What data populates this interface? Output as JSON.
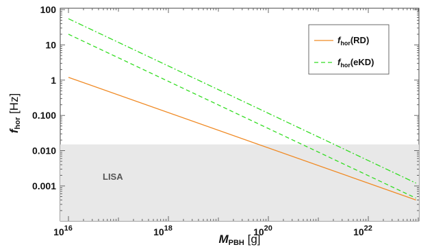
{
  "chart_data": {
    "type": "line",
    "xscale": "log",
    "yscale": "log",
    "xlim": [
      1e+16,
      1e+23
    ],
    "ylim": [
      0.0001,
      100
    ],
    "xlabel": {
      "main": "M",
      "sub": "PBH",
      "unit": " [g]"
    },
    "ylabel": {
      "main": "f",
      "sub": "hor",
      "unit": " [Hz]"
    },
    "x_ticks": [
      {
        "value": 1e+16,
        "base": "10",
        "exp": "16"
      },
      {
        "value": 1e+18,
        "base": "10",
        "exp": "18"
      },
      {
        "value": 1e+20,
        "base": "10",
        "exp": "20"
      },
      {
        "value": 1e+22,
        "base": "10",
        "exp": "22"
      }
    ],
    "y_ticks": [
      {
        "value": 0.001,
        "label": "0.001"
      },
      {
        "value": 0.01,
        "label": "0.010"
      },
      {
        "value": 0.1,
        "label": "0.100"
      },
      {
        "value": 1,
        "label": "1"
      },
      {
        "value": 10,
        "label": "10"
      },
      {
        "value": 100,
        "label": "100"
      }
    ],
    "region": {
      "label": "LISA",
      "ymax": 0.015,
      "color": "#e8e8e8"
    },
    "series": [
      {
        "legend_main": "f",
        "legend_sub": "hor",
        "legend_tag": "(RD)",
        "color": "#f08a24",
        "dash": "solid",
        "points": [
          [
            1e+16,
            1.2
          ],
          [
            9e+22,
            0.0004
          ]
        ]
      },
      {
        "legend_main": "f",
        "legend_sub": "hor",
        "legend_tag": "(eKD)",
        "color": "#33dd22",
        "dash": "dashed",
        "points": [
          [
            1e+16,
            20
          ],
          [
            9e+22,
            0.00045
          ]
        ]
      },
      {
        "color": "#33dd22",
        "dash": "dashdot",
        "points": [
          [
            1e+16,
            55
          ],
          [
            9e+22,
            0.0012
          ]
        ]
      }
    ],
    "legend_position": "top-right",
    "grid": false
  }
}
